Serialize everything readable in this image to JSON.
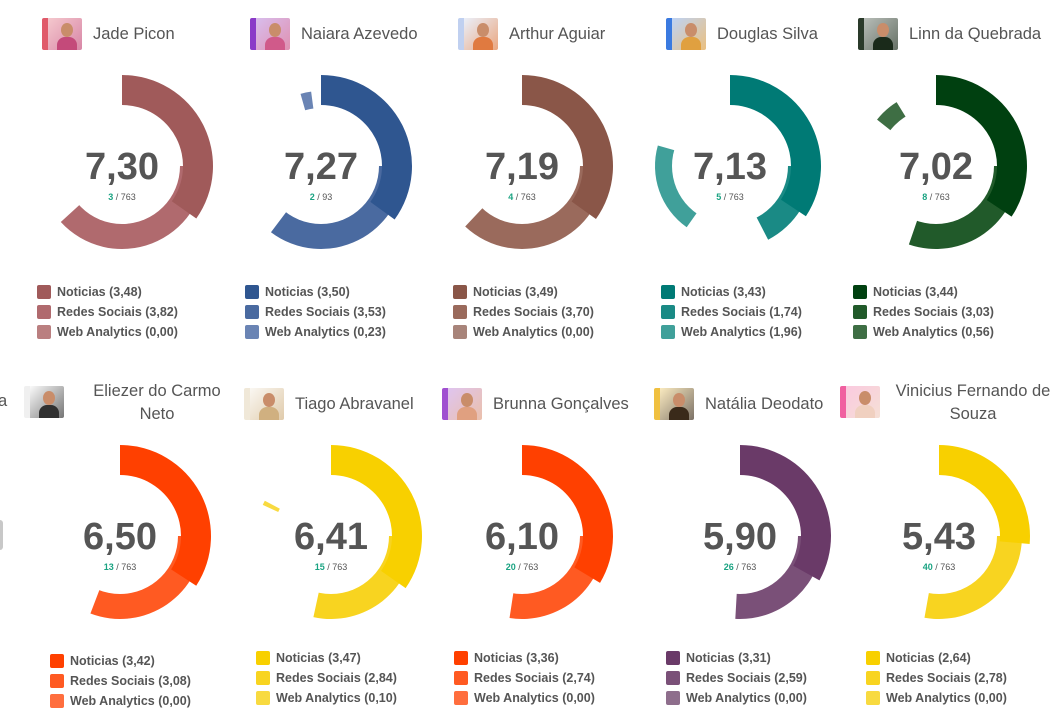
{
  "chart_data": {
    "type": "radial-bar",
    "title": "",
    "series_names": [
      "Noticias",
      "Redes Sociais",
      "Web Analytics"
    ],
    "max_value": 5,
    "items": [
      {
        "name": "Jade Picon",
        "score": "7,30",
        "rank": "3",
        "total": "763",
        "values": [
          3.48,
          3.82,
          0.0
        ],
        "colors": [
          "#a05a5a",
          "#b06a6e",
          "#ba7f80"
        ],
        "avatar_colors": [
          "#e05a6a",
          "#c44a7a"
        ]
      },
      {
        "name": "Naiara Azevedo",
        "score": "7,27",
        "rank": "2",
        "total": "93",
        "values": [
          3.5,
          3.53,
          0.23
        ],
        "colors": [
          "#2f5690",
          "#4a6aa0",
          "#6a84b4"
        ],
        "avatar_colors": [
          "#8a3ac8",
          "#d05a8a"
        ]
      },
      {
        "name": "Arthur Aguiar",
        "score": "7,19",
        "rank": "4",
        "total": "763",
        "values": [
          3.49,
          3.7,
          0.0
        ],
        "colors": [
          "#8a5648",
          "#9a6a5c",
          "#a8847a"
        ],
        "avatar_colors": [
          "#c0d0f0",
          "#e07a40"
        ]
      },
      {
        "name": "Douglas Silva",
        "score": "7,13",
        "rank": "5",
        "total": "763",
        "values": [
          3.43,
          1.74,
          1.96
        ],
        "colors": [
          "#007a75",
          "#1a8a85",
          "#40a09a"
        ],
        "avatar_colors": [
          "#3a7ae0",
          "#e0a040"
        ]
      },
      {
        "name": "Linn da Quebrada",
        "score": "7,02",
        "rank": "8",
        "total": "763",
        "values": [
          3.44,
          3.03,
          0.56
        ],
        "colors": [
          "#004010",
          "#215a2a",
          "#3e6e44"
        ],
        "avatar_colors": [
          "#2a3a2a",
          "#1a2a1a"
        ]
      },
      {
        "name": "Eliezer do Carmo Neto",
        "name_lines": [
          "Eliezer do Carmo",
          "Neto"
        ],
        "score": "6,50",
        "rank": "13",
        "total": "763",
        "values": [
          3.42,
          3.08,
          0.0
        ],
        "colors": [
          "#ff4000",
          "#ff5a22",
          "#ff6e3e"
        ],
        "avatar_colors": [
          "#f0f0f0",
          "#303030"
        ]
      },
      {
        "name": "Tiago Abravanel",
        "score": "6,41",
        "rank": "15",
        "total": "763",
        "values": [
          3.47,
          2.84,
          0.1
        ],
        "colors": [
          "#f8d000",
          "#f8d420",
          "#f8da40"
        ],
        "avatar_colors": [
          "#f0e8d8",
          "#d0b080"
        ]
      },
      {
        "name": "Brunna Gonçalves",
        "score": "6,10",
        "rank": "20",
        "total": "763",
        "values": [
          3.36,
          2.74,
          0.0
        ],
        "colors": [
          "#ff4000",
          "#ff5a22",
          "#ff6e3e"
        ],
        "avatar_colors": [
          "#a050d0",
          "#e0a080"
        ]
      },
      {
        "name": "Natália Deodato",
        "score": "5,90",
        "rank": "26",
        "total": "763",
        "values": [
          3.31,
          2.59,
          0.0
        ],
        "colors": [
          "#6a3a68",
          "#7a5078",
          "#8e6e8c"
        ],
        "avatar_colors": [
          "#f0c040",
          "#3a2a1a"
        ]
      },
      {
        "name": "Vinicius Fernando de Souza",
        "name_lines": [
          "Vinicius Fernando de",
          "Souza"
        ],
        "score": "5,43",
        "rank": "40",
        "total": "763",
        "values": [
          2.64,
          2.78,
          0.0
        ],
        "colors": [
          "#f8d000",
          "#f8d420",
          "#f8da40"
        ],
        "avatar_colors": [
          "#f060a0",
          "#f0d0c0"
        ]
      }
    ]
  },
  "labels": {
    "rank_separator": "/",
    "partial_left_text": "a"
  }
}
